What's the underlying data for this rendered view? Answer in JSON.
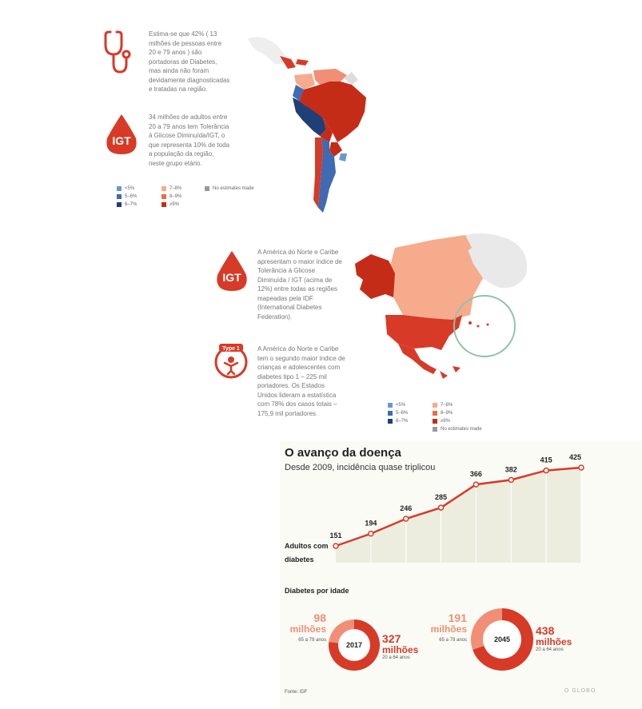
{
  "colors": {
    "red": "#d73a26",
    "light_red": "#f08f75",
    "salmon": "#f6ab8c",
    "blue1": "#6a97d2",
    "blue2": "#3e6bb3",
    "blue3": "#1f3f78",
    "grey": "#999999",
    "area": "#eceddf"
  },
  "sa": {
    "note1": "Estima-se que 42% ( 13 milhões de pessoas entre 20 e 79 anos ) são portadoras de Diabetes, mas ainda não foram devidamente diagnosticadas e tratadas na região.",
    "note2": "34 milhões de adultos entre 20 a 79 anos tem Tolerância à Glicose Diminuída/IGT, o que representa 10% de toda a população da região, neste grupo etário.",
    "icon_label": "IGT"
  },
  "na": {
    "note1": "A América do Norte e Caribe apresentam o maior índice de Tolerância à Glicose Diminuída / IGT (acima de 12%) entre todas as regiões mapeadas pela IDF (International Diabetes Federation).",
    "note2": "A América do Norte e Caribe tem o segundo maior índice de crianças e adolescentes com diabetes tipo 1 – 225 mil portadores. Os Estados Unidos lideram a estatística com 78% dos casos totais – 175,9 mil portadores.",
    "icon_label": "IGT",
    "type1_label": "Type 1"
  },
  "legend": {
    "items": [
      "<5%",
      "5–6%",
      "6–7%",
      "7–8%",
      "8–9%",
      "≥9%",
      "No estimates made"
    ]
  },
  "chart": {
    "title": "O avanço da doença",
    "subtitle": "Desde 2009, incidência quase triplicou",
    "series_label": "Adultos com diabetes"
  },
  "chart_data": [
    {
      "type": "area",
      "title": "O avanço da doença",
      "subtitle": "Desde 2009, incidência quase triplicou",
      "values": [
        151,
        194,
        246,
        285,
        366,
        382,
        415,
        425
      ],
      "value_labels": [
        "151",
        "194",
        "246",
        "285",
        "366",
        "382",
        "415",
        "425"
      ],
      "series": [
        {
          "name": "Adultos com diabetes",
          "values": [
            151,
            194,
            246,
            285,
            366,
            382,
            415,
            425
          ]
        }
      ],
      "ylim": [
        0,
        440
      ]
    },
    {
      "type": "pie",
      "title": "Diabetes por idade",
      "center_label": "2017",
      "slices": [
        {
          "value": 98,
          "label": "98 milhões",
          "group": "65 a 79 anos"
        },
        {
          "value": 327,
          "label": "327 milhões",
          "group": "20 a 64 anos"
        }
      ]
    },
    {
      "type": "pie",
      "center_label": "2045",
      "slices": [
        {
          "value": 191,
          "label": "191 milhões",
          "group": "65 a 79 anos"
        },
        {
          "value": 438,
          "label": "438 milhões",
          "group": "20 a 64 anos"
        }
      ]
    }
  ],
  "donuts": {
    "section_title": "Diabetes por idade",
    "d2017": {
      "year": "2017",
      "old_num": "98",
      "old_unit": "milhões",
      "old_group": "65 a 79 anos",
      "young_num": "327",
      "young_unit": "milhões",
      "young_group": "20 a 64 anos"
    },
    "d2045": {
      "year": "2045",
      "old_num": "191",
      "old_unit": "milhões",
      "old_group": "65 a 79 anos",
      "young_num": "438",
      "young_unit": "milhões",
      "young_group": "20 a 64 anos"
    }
  },
  "footer": {
    "source": "Fonte: IDF",
    "brand": "O GLOBO"
  }
}
